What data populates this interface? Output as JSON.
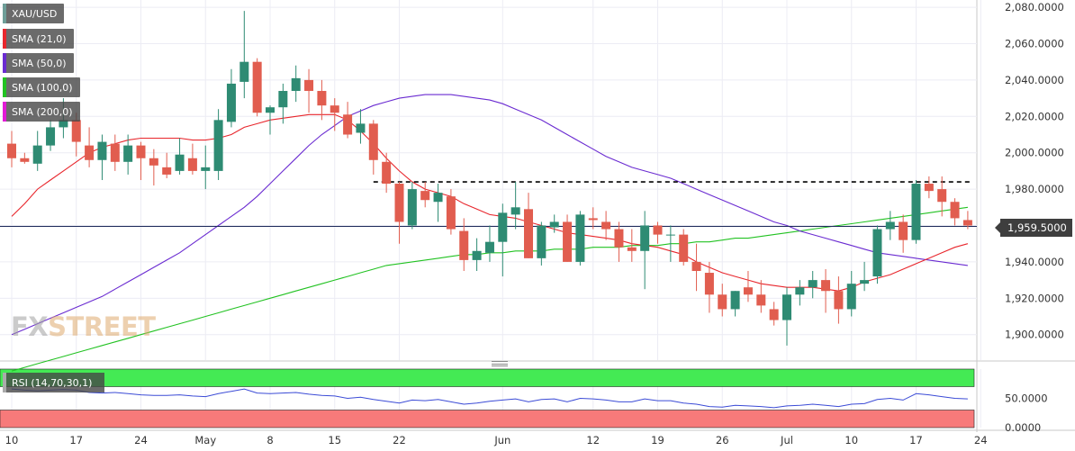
{
  "symbol": "XAU/USD",
  "legend": [
    {
      "label": "XAU/USD",
      "color": "#6e9e98"
    },
    {
      "label": "SMA (21,0)",
      "color": "#e8262c"
    },
    {
      "label": "SMA (50,0)",
      "color": "#6a2bd1"
    },
    {
      "label": "SMA (100,0)",
      "color": "#22c222"
    },
    {
      "label": "SMA (200,0)",
      "color": "#e21ad6"
    }
  ],
  "rsi_label": "RSI (14,70,30,1)",
  "current_price": "1,959.5000",
  "watermark": {
    "fx": "FX",
    "rest": "STREET"
  },
  "colors": {
    "up": "#2e8b73",
    "down": "#e15d4f",
    "sma21": "#e8262c",
    "sma50": "#6a2bd1",
    "sma100": "#22c222",
    "rsi_line": "#3b4bd6",
    "overbought": "#44ea54",
    "oversold": "#f77a7a",
    "resistance": "#000000"
  },
  "chart_data": [
    {
      "type": "candlestick",
      "title": "XAU/USD",
      "y_ticks": [
        "2,080.0000",
        "2,060.0000",
        "2,040.0000",
        "2,020.0000",
        "2,000.0000",
        "1,980.0000",
        "1,960.0000",
        "1,940.0000",
        "1,920.0000",
        "1,900.0000"
      ],
      "ylim": [
        1886,
        2084
      ],
      "x_ticks": [
        {
          "label": "10",
          "i": 0
        },
        {
          "label": "17",
          "i": 5
        },
        {
          "label": "24",
          "i": 10
        },
        {
          "label": "May",
          "i": 15
        },
        {
          "label": "8",
          "i": 20
        },
        {
          "label": "15",
          "i": 25
        },
        {
          "label": "22",
          "i": 30
        },
        {
          "label": "Jun",
          "i": 38
        },
        {
          "label": "12",
          "i": 45
        },
        {
          "label": "19",
          "i": 50
        },
        {
          "label": "26",
          "i": 55
        },
        {
          "label": "Jul",
          "i": 60
        },
        {
          "label": "10",
          "i": 65
        },
        {
          "label": "17",
          "i": 70
        },
        {
          "label": "24",
          "i": 75
        }
      ],
      "current_price": 1959.5,
      "resistance_level": 1984,
      "candles": [
        [
          2005,
          2012,
          1992,
          1997
        ],
        [
          1997,
          2000,
          1994,
          1995
        ],
        [
          1994,
          2012,
          1990,
          2004
        ],
        [
          2004,
          2018,
          2001,
          2014
        ],
        [
          2014,
          2030,
          2008,
          2018
        ],
        [
          2018,
          2022,
          1998,
          2006
        ],
        [
          2004,
          2014,
          1992,
          1996
        ],
        [
          1996,
          2010,
          1985,
          2006
        ],
        [
          2005,
          2010,
          1990,
          1995
        ],
        [
          1995,
          2010,
          1988,
          2004
        ],
        [
          2004,
          2006,
          1985,
          1997
        ],
        [
          1997,
          2002,
          1982,
          1993
        ],
        [
          1992,
          2000,
          1986,
          1988
        ],
        [
          1990,
          2008,
          1988,
          1999
        ],
        [
          1997,
          2005,
          1988,
          1990
        ],
        [
          1990,
          2004,
          1980,
          1992
        ],
        [
          1990,
          2024,
          1985,
          2018
        ],
        [
          2017,
          2046,
          2014,
          2038
        ],
        [
          2039,
          2078,
          2030,
          2050
        ],
        [
          2050,
          2052,
          2020,
          2022
        ],
        [
          2022,
          2026,
          2010,
          2025
        ],
        [
          2025,
          2038,
          2016,
          2034
        ],
        [
          2034,
          2048,
          2028,
          2041
        ],
        [
          2040,
          2046,
          2022,
          2034
        ],
        [
          2034,
          2040,
          2018,
          2026
        ],
        [
          2026,
          2030,
          2012,
          2022
        ],
        [
          2021,
          2028,
          2008,
          2010
        ],
        [
          2011,
          2024,
          2005,
          2016
        ],
        [
          2016,
          2018,
          1988,
          1996
        ],
        [
          1995,
          2000,
          1978,
          1983
        ],
        [
          1983,
          1984,
          1950,
          1962
        ],
        [
          1960,
          1984,
          1958,
          1980
        ],
        [
          1979,
          1984,
          1970,
          1974
        ],
        [
          1973,
          1983,
          1962,
          1978
        ],
        [
          1976,
          1980,
          1955,
          1958
        ],
        [
          1957,
          1964,
          1935,
          1941
        ],
        [
          1941,
          1953,
          1935,
          1946
        ],
        [
          1945,
          1960,
          1940,
          1951
        ],
        [
          1951,
          1972,
          1932,
          1967
        ],
        [
          1966,
          1984,
          1958,
          1970
        ],
        [
          1969,
          1978,
          1942,
          1942
        ],
        [
          1942,
          1962,
          1938,
          1960
        ],
        [
          1959,
          1966,
          1956,
          1962
        ],
        [
          1962,
          1966,
          1940,
          1940
        ],
        [
          1940,
          1968,
          1938,
          1966
        ],
        [
          1964,
          1970,
          1958,
          1963
        ],
        [
          1962,
          1968,
          1952,
          1958
        ],
        [
          1958,
          1962,
          1940,
          1948
        ],
        [
          1948,
          1958,
          1940,
          1946
        ],
        [
          1946,
          1968,
          1925,
          1960
        ],
        [
          1960,
          1962,
          1950,
          1955
        ],
        [
          1955,
          1960,
          1940,
          1955
        ],
        [
          1955,
          1958,
          1938,
          1940
        ],
        [
          1940,
          1950,
          1924,
          1935
        ],
        [
          1934,
          1940,
          1912,
          1922
        ],
        [
          1922,
          1928,
          1910,
          1914
        ],
        [
          1914,
          1924,
          1910,
          1924
        ],
        [
          1926,
          1935,
          1918,
          1922
        ],
        [
          1922,
          1930,
          1912,
          1916
        ],
        [
          1914,
          1918,
          1905,
          1908
        ],
        [
          1908,
          1926,
          1894,
          1922
        ],
        [
          1922,
          1930,
          1916,
          1926
        ],
        [
          1926,
          1935,
          1920,
          1930
        ],
        [
          1930,
          1936,
          1912,
          1924
        ],
        [
          1924,
          1932,
          1906,
          1914
        ],
        [
          1914,
          1935,
          1910,
          1928
        ],
        [
          1928,
          1940,
          1924,
          1930
        ],
        [
          1932,
          1960,
          1928,
          1958
        ],
        [
          1958,
          1968,
          1952,
          1962
        ],
        [
          1962,
          1966,
          1945,
          1952
        ],
        [
          1952,
          1985,
          1950,
          1983
        ],
        [
          1983,
          1987,
          1975,
          1979
        ],
        [
          1980,
          1987,
          1965,
          1973
        ],
        [
          1973,
          1975,
          1960,
          1964
        ],
        [
          1963,
          1968,
          1958,
          1960
        ]
      ],
      "sma21": [
        1965,
        1972,
        1980,
        1985,
        1990,
        1995,
        2000,
        2003,
        2005,
        2007,
        2008,
        2008,
        2008,
        2008,
        2007,
        2007,
        2008,
        2010,
        2014,
        2016,
        2018,
        2019,
        2020,
        2021,
        2021,
        2021,
        2018,
        2012,
        2005,
        1997,
        1990,
        1984,
        1980,
        1978,
        1976,
        1972,
        1969,
        1966,
        1965,
        1964,
        1962,
        1960,
        1958,
        1956,
        1955,
        1954,
        1953,
        1952,
        1950,
        1949,
        1948,
        1946,
        1944,
        1940,
        1937,
        1934,
        1932,
        1930,
        1928,
        1927,
        1926,
        1926,
        1926,
        1925,
        1924,
        1926,
        1929,
        1931,
        1933,
        1936,
        1939,
        1942,
        1945,
        1948,
        1950
      ],
      "sma50": [
        1900,
        1903,
        1906,
        1909,
        1912,
        1915,
        1918,
        1921,
        1925,
        1929,
        1933,
        1937,
        1941,
        1945,
        1950,
        1955,
        1960,
        1965,
        1970,
        1976,
        1983,
        1990,
        1997,
        2004,
        2010,
        2015,
        2020,
        2023,
        2026,
        2028,
        2030,
        2031,
        2032,
        2032,
        2032,
        2031,
        2030,
        2029,
        2027,
        2024,
        2021,
        2018,
        2014,
        2010,
        2006,
        2002,
        1998,
        1995,
        1992,
        1990,
        1988,
        1986,
        1983,
        1980,
        1977,
        1974,
        1971,
        1968,
        1965,
        1962,
        1960,
        1957,
        1955,
        1953,
        1951,
        1949,
        1947,
        1945,
        1944,
        1943,
        1942,
        1941,
        1940,
        1939,
        1938
      ],
      "sma100": [
        1880,
        1882,
        1884,
        1886,
        1888,
        1890,
        1892,
        1894,
        1896,
        1898,
        1900,
        1902,
        1904,
        1906,
        1908,
        1910,
        1912,
        1914,
        1916,
        1918,
        1920,
        1922,
        1924,
        1926,
        1928,
        1930,
        1932,
        1934,
        1936,
        1938,
        1939,
        1940,
        1941,
        1942,
        1943,
        1944,
        1944,
        1945,
        1945,
        1946,
        1946,
        1946,
        1947,
        1947,
        1947,
        1948,
        1948,
        1948,
        1949,
        1949,
        1949,
        1950,
        1950,
        1951,
        1951,
        1952,
        1953,
        1953,
        1954,
        1955,
        1956,
        1957,
        1958,
        1959,
        1960,
        1961,
        1962,
        1963,
        1964,
        1965,
        1966,
        1967,
        1968,
        1969,
        1970
      ],
      "rsi_ylim": [
        0,
        100
      ],
      "rsi_levels": {
        "overbought": 70,
        "oversold": 30
      },
      "rsi_ticks": [
        "50.0000",
        "0.0000"
      ],
      "rsi": [
        66,
        64,
        63,
        64,
        65,
        64,
        60,
        59,
        60,
        58,
        56,
        55,
        55,
        56,
        54,
        53,
        58,
        62,
        66,
        59,
        58,
        59,
        60,
        57,
        55,
        54,
        50,
        52,
        48,
        45,
        42,
        47,
        46,
        48,
        44,
        40,
        42,
        45,
        47,
        49,
        44,
        48,
        49,
        44,
        50,
        49,
        47,
        44,
        44,
        49,
        46,
        46,
        42,
        40,
        36,
        35,
        38,
        37,
        36,
        34,
        37,
        38,
        40,
        38,
        36,
        40,
        41,
        48,
        50,
        47,
        58,
        56,
        53,
        50,
        49
      ]
    }
  ]
}
